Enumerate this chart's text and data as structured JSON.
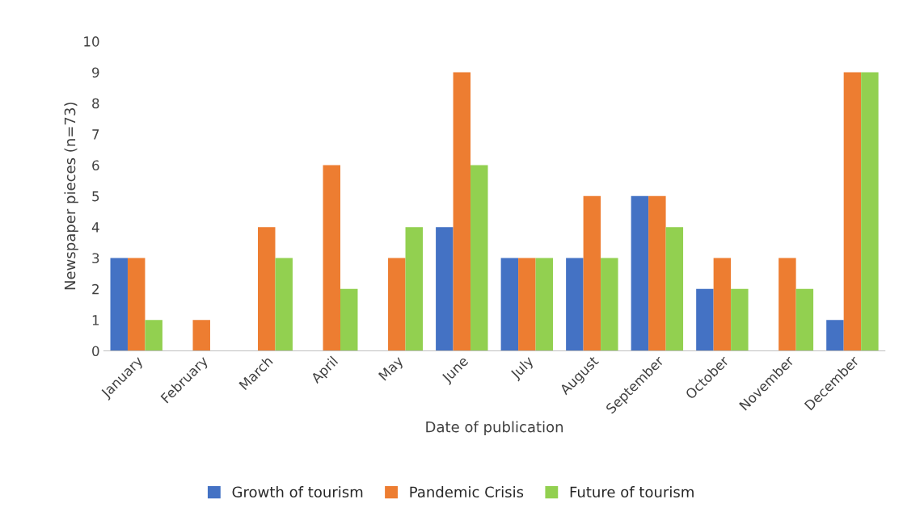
{
  "chart_data": {
    "type": "bar",
    "xlabel": "Date of publication",
    "ylabel": "Newspaper pieces (n=73)",
    "categories": [
      "January",
      "February",
      "March",
      "April",
      "May",
      "June",
      "July",
      "August",
      "September",
      "October",
      "November",
      "December"
    ],
    "series": [
      {
        "name": "Growth of tourism",
        "color": "#4472c4",
        "values": [
          3,
          0,
          0,
          0,
          0,
          4,
          3,
          3,
          5,
          2,
          0,
          1
        ]
      },
      {
        "name": "Pandemic Crisis",
        "color": "#ed7d31",
        "values": [
          3,
          1,
          4,
          6,
          3,
          9,
          3,
          5,
          5,
          3,
          3,
          9
        ]
      },
      {
        "name": "Future of tourism",
        "color": "#92d050",
        "values": [
          1,
          0,
          3,
          2,
          4,
          6,
          3,
          3,
          4,
          2,
          2,
          9
        ]
      }
    ],
    "ylim": [
      0,
      10
    ],
    "yticks": [
      0,
      1,
      2,
      3,
      4,
      5,
      6,
      7,
      8,
      9,
      10
    ],
    "grid": false,
    "legend": "bottom"
  }
}
